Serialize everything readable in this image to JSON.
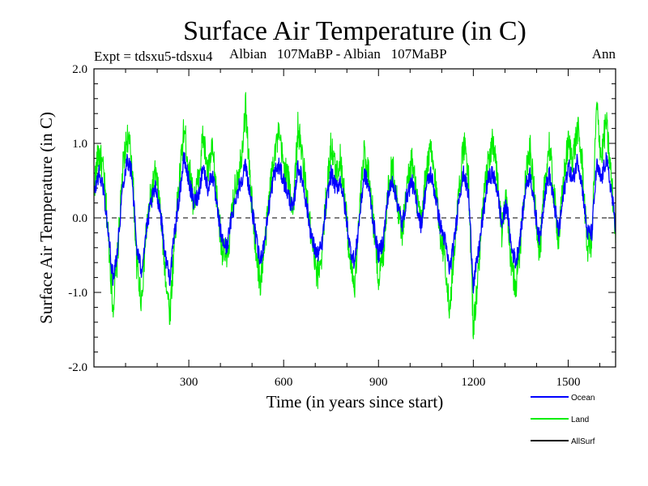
{
  "chart_data": {
    "type": "line",
    "title": "Surface Air Temperature (in C)",
    "subtitle_left": "Expt = tdsxu5-tdsxu4",
    "subtitle_middle": "Albian   107MaBP - Albian   107MaBP",
    "subtitle_right": "Ann",
    "xlabel": "Time (in years since start)",
    "ylabel": "Surface Air Temperature (in C)",
    "xlim": [
      0,
      1650
    ],
    "ylim": [
      -2.0,
      2.0
    ],
    "x_ticks": [
      300,
      600,
      900,
      1200,
      1500
    ],
    "x_tick_labels": [
      "300",
      "600",
      "900",
      "1200",
      "1500"
    ],
    "y_ticks": [
      -2.0,
      -1.0,
      0.0,
      1.0,
      2.0
    ],
    "y_tick_labels": [
      "-2.0",
      "-1.0",
      "0.0",
      "1.0",
      "2.0"
    ],
    "zero_line": "dashed",
    "legend_position": "bottom-right",
    "series": [
      {
        "name": "Land",
        "color": "#00ee00",
        "x": [
          0,
          15,
          30,
          45,
          60,
          75,
          90,
          105,
          120,
          135,
          150,
          165,
          180,
          195,
          210,
          225,
          240,
          255,
          270,
          285,
          300,
          315,
          330,
          345,
          360,
          375,
          390,
          405,
          420,
          435,
          450,
          465,
          480,
          495,
          510,
          525,
          540,
          555,
          570,
          585,
          600,
          615,
          630,
          645,
          660,
          675,
          690,
          705,
          720,
          735,
          750,
          765,
          780,
          795,
          810,
          825,
          840,
          855,
          870,
          885,
          900,
          915,
          930,
          945,
          960,
          975,
          990,
          1005,
          1020,
          1035,
          1050,
          1065,
          1080,
          1095,
          1110,
          1125,
          1140,
          1155,
          1170,
          1185,
          1200,
          1215,
          1230,
          1245,
          1260,
          1275,
          1290,
          1305,
          1320,
          1335,
          1350,
          1365,
          1380,
          1395,
          1410,
          1425,
          1440,
          1455,
          1470,
          1485,
          1500,
          1515,
          1530,
          1545,
          1560,
          1575,
          1590,
          1605,
          1620,
          1635,
          1650
        ],
        "values": [
          0.4,
          0.9,
          0.6,
          -0.2,
          -1.2,
          -0.5,
          0.6,
          1.1,
          0.8,
          -0.6,
          -1.1,
          -0.2,
          0.3,
          0.6,
          0.1,
          -0.7,
          -1.3,
          -0.3,
          0.5,
          1.2,
          0.7,
          0.2,
          0.5,
          1.1,
          0.6,
          0.9,
          0.2,
          -0.4,
          -0.6,
          0.0,
          0.5,
          0.8,
          1.5,
          0.4,
          -0.3,
          -0.9,
          -0.4,
          0.3,
          0.9,
          1.1,
          0.7,
          0.5,
          0.1,
          1.2,
          0.8,
          0.2,
          -0.4,
          -0.8,
          -0.5,
          0.3,
          1.0,
          0.6,
          0.8,
          0.2,
          -0.6,
          -0.9,
          0.1,
          0.9,
          0.6,
          -0.1,
          -0.8,
          -0.5,
          0.4,
          0.7,
          0.2,
          -0.2,
          0.4,
          0.8,
          0.3,
          -0.1,
          0.6,
          0.9,
          0.5,
          -0.2,
          -0.5,
          -1.3,
          -0.4,
          0.4,
          1.0,
          0.5,
          -1.5,
          -0.8,
          0.1,
          0.7,
          1.0,
          0.6,
          -0.2,
          0.3,
          -0.7,
          -0.9,
          -0.3,
          0.6,
          0.9,
          0.2,
          -0.5,
          0.4,
          1.0,
          0.3,
          -0.3,
          0.5,
          1.0,
          0.8,
          1.2,
          0.7,
          -0.4,
          -0.3,
          1.5,
          0.8,
          1.3,
          0.6,
          -0.2
        ]
      },
      {
        "name": "Ocean",
        "color": "#0000ff",
        "x": [
          0,
          15,
          30,
          45,
          60,
          75,
          90,
          105,
          120,
          135,
          150,
          165,
          180,
          195,
          210,
          225,
          240,
          255,
          270,
          285,
          300,
          315,
          330,
          345,
          360,
          375,
          390,
          405,
          420,
          435,
          450,
          465,
          480,
          495,
          510,
          525,
          540,
          555,
          570,
          585,
          600,
          615,
          630,
          645,
          660,
          675,
          690,
          705,
          720,
          735,
          750,
          765,
          780,
          795,
          810,
          825,
          840,
          855,
          870,
          885,
          900,
          915,
          930,
          945,
          960,
          975,
          990,
          1005,
          1020,
          1035,
          1050,
          1065,
          1080,
          1095,
          1110,
          1125,
          1140,
          1155,
          1170,
          1185,
          1200,
          1215,
          1230,
          1245,
          1260,
          1275,
          1290,
          1305,
          1320,
          1335,
          1350,
          1365,
          1380,
          1395,
          1410,
          1425,
          1440,
          1455,
          1470,
          1485,
          1500,
          1515,
          1530,
          1545,
          1560,
          1575,
          1590,
          1605,
          1620,
          1635,
          1650
        ],
        "values": [
          0.3,
          0.6,
          0.4,
          -0.2,
          -0.8,
          -0.4,
          0.4,
          0.8,
          0.6,
          -0.4,
          -0.7,
          -0.2,
          0.2,
          0.4,
          0.1,
          -0.5,
          -0.8,
          -0.2,
          0.3,
          0.8,
          0.5,
          0.2,
          0.3,
          0.7,
          0.4,
          0.6,
          0.1,
          -0.3,
          -0.4,
          0.0,
          0.3,
          0.5,
          0.7,
          0.3,
          -0.2,
          -0.6,
          -0.3,
          0.2,
          0.6,
          0.7,
          0.5,
          0.3,
          0.1,
          0.7,
          0.5,
          0.1,
          -0.3,
          -0.5,
          -0.4,
          0.2,
          0.6,
          0.4,
          0.5,
          0.1,
          -0.4,
          -0.6,
          0.0,
          0.6,
          0.4,
          -0.1,
          -0.5,
          -0.3,
          0.3,
          0.5,
          0.2,
          -0.1,
          0.3,
          0.5,
          0.2,
          -0.1,
          0.4,
          0.6,
          0.3,
          -0.1,
          -0.3,
          -0.7,
          -0.3,
          0.3,
          0.6,
          0.3,
          -0.9,
          -0.5,
          0.0,
          0.5,
          0.6,
          0.4,
          -0.1,
          0.2,
          -0.4,
          -0.6,
          -0.2,
          0.4,
          0.6,
          0.1,
          -0.3,
          0.3,
          0.6,
          0.2,
          -0.2,
          0.3,
          0.7,
          0.5,
          0.8,
          0.4,
          -0.2,
          -0.2,
          0.7,
          0.5,
          0.8,
          0.4,
          -0.1
        ]
      },
      {
        "name": "AllSurf",
        "color": "#000000",
        "x": [],
        "values": []
      }
    ]
  }
}
